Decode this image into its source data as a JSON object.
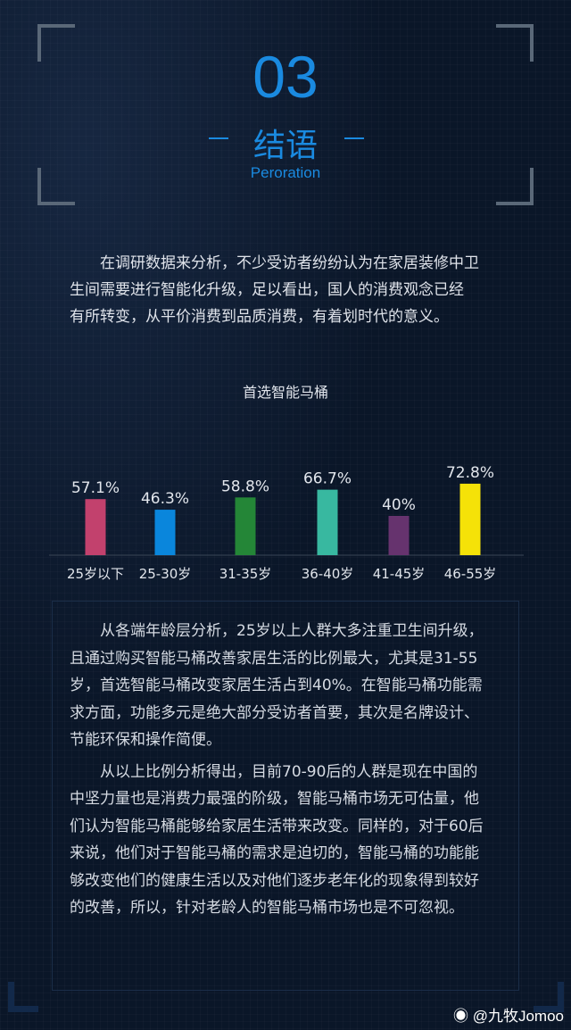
{
  "header": {
    "number": "03",
    "title": "结语",
    "subtitle": "Peroration"
  },
  "intro": {
    "lines": [
      "　　在调研数据来分析，不少受访者纷纷认为在家居装修中卫",
      "生间需要进行智能化升级，足以看出，国人的消费观念已经",
      "有所转变，从平价消费到品质消费，有着划时代的意义。"
    ]
  },
  "chart_data": {
    "type": "bar",
    "title": "首选智能马桶",
    "categories": [
      "25岁以下",
      "25-30岁",
      "31-35岁",
      "36-40岁",
      "41-45岁",
      "46-55岁"
    ],
    "values": [
      57.1,
      46.3,
      58.8,
      66.7,
      40,
      72.8
    ],
    "labels": [
      "57.1%",
      "46.3%",
      "58.8%",
      "66.7%",
      "40%",
      "72.8%"
    ],
    "colors": [
      "#c2416d",
      "#0a86dc",
      "#248637",
      "#38b8a0",
      "#66336e",
      "#f5e208"
    ],
    "ylim": [
      0,
      80
    ],
    "grid": false
  },
  "analysis": {
    "p1": [
      "　　从各端年龄层分析，25岁以上人群大多注重卫生间升级，",
      "且通过购买智能马桶改善家居生活的比例最大，尤其是31-55",
      "岁，首选智能马桶改变家居生活占到40%。在智能马桶功能需",
      "求方面，功能多元是绝大部分受访者首要，其次是名牌设计、",
      "节能环保和操作简便。"
    ],
    "p2": [
      "　　从以上比例分析得出，目前70-90后的人群是现在中国的",
      "中坚力量也是消费力最强的阶级，智能马桶市场无可估量，他",
      "们认为智能马桶能够给家居生活带来改变。同样的，对于60后",
      "来说，他们对于智能马桶的需求是迫切的，智能马桶的功能能",
      "够改变他们的健康生活以及对他们逐步老年化的现象得到较好",
      "的改善，所以，针对老龄人的智能马桶市场也是不可忽视。"
    ]
  },
  "watermark": {
    "icon": "weibo-icon",
    "text": "@九牧Jomoo"
  }
}
